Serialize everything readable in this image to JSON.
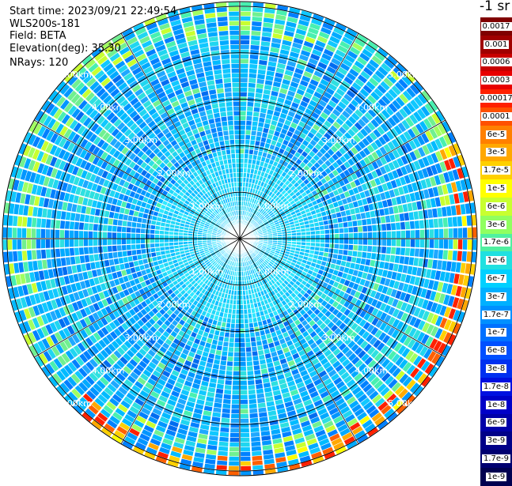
{
  "header": {
    "start_time": "Start time: 2023/09/21 22:49:54",
    "instrument": "WLS200s-181",
    "field": "Field: BETA",
    "elevation": "Elevation(deg): 35.30",
    "nrays": "NRays: 120"
  },
  "range_rings": {
    "labels": [
      "1.00km",
      "2.00km",
      "3.00km",
      "4.00km",
      "5.00km"
    ],
    "ring_radius_km": [
      1,
      2,
      3,
      4,
      5
    ],
    "max_range_km": 5.1
  },
  "colorbar": {
    "unit": "-1 sr",
    "levels": [
      {
        "label": "0.0017",
        "color": "#800000"
      },
      {
        "label": "0.001",
        "color": "#a00000"
      },
      {
        "label": "0.0006",
        "color": "#c80000"
      },
      {
        "label": "0.0003",
        "color": "#e80000"
      },
      {
        "label": "0.00017",
        "color": "#ff2000"
      },
      {
        "label": "0.0001",
        "color": "#ff5000"
      },
      {
        "label": "6e-5",
        "color": "#ff8000"
      },
      {
        "label": "3e-5",
        "color": "#ffa800"
      },
      {
        "label": "1.7e-5",
        "color": "#ffd000"
      },
      {
        "label": "1e-5",
        "color": "#ffff00"
      },
      {
        "label": "6e-6",
        "color": "#c8ff30"
      },
      {
        "label": "3e-6",
        "color": "#90ff60"
      },
      {
        "label": "1.7e-6",
        "color": "#50f0a0"
      },
      {
        "label": "1e-6",
        "color": "#20e0e0"
      },
      {
        "label": "6e-7",
        "color": "#00d0ff"
      },
      {
        "label": "3e-7",
        "color": "#00b0ff"
      },
      {
        "label": "1.7e-7",
        "color": "#0090ff"
      },
      {
        "label": "1e-7",
        "color": "#0070ff"
      },
      {
        "label": "6e-8",
        "color": "#0050ff"
      },
      {
        "label": "3e-8",
        "color": "#0030f0"
      },
      {
        "label": "1.7e-8",
        "color": "#0010e0"
      },
      {
        "label": "1e-8",
        "color": "#0000c8"
      },
      {
        "label": "6e-9",
        "color": "#0000a8"
      },
      {
        "label": "3e-9",
        "color": "#000088"
      },
      {
        "label": "1.7e-9",
        "color": "#000070"
      },
      {
        "label": "1e-9",
        "color": "#000050"
      }
    ]
  }
}
